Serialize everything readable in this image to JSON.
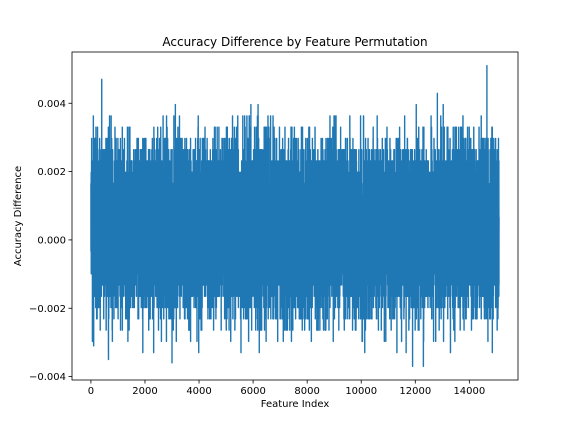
{
  "chart_data": {
    "type": "line",
    "title": "Accuracy Difference by Feature Permutation",
    "xlabel": "Feature Index",
    "ylabel": "Accuracy Difference",
    "xlim": [
      -700,
      15800
    ],
    "ylim": [
      -0.0041,
      0.0055
    ],
    "xticks": [
      0,
      2000,
      4000,
      6000,
      8000,
      10000,
      12000,
      14000
    ],
    "xtick_labels": [
      "0",
      "2000",
      "4000",
      "6000",
      "8000",
      "10000",
      "12000",
      "14000"
    ],
    "yticks": [
      -0.004,
      -0.002,
      0.0,
      0.002,
      0.004
    ],
    "ytick_labels": [
      "−0.004",
      "−0.002",
      "0.000",
      "0.002",
      "0.004"
    ],
    "grid": false,
    "legend": false,
    "series": [
      {
        "color": "#1f77b4",
        "x_range": [
          0,
          15100
        ],
        "points": 15100,
        "value_range": [
          -0.0037,
          0.0051
        ],
        "step": 0.00033,
        "notable_points": [
          {
            "x": 100,
            "y": -0.0031
          },
          {
            "x": 400,
            "y": 0.0047
          },
          {
            "x": 650,
            "y": -0.0035
          },
          {
            "x": 3000,
            "y": -0.0036
          },
          {
            "x": 11900,
            "y": -0.0037
          },
          {
            "x": 12300,
            "y": -0.0037
          },
          {
            "x": 14650,
            "y": 0.0051
          },
          {
            "x": 14850,
            "y": -0.0033
          }
        ]
      }
    ]
  }
}
